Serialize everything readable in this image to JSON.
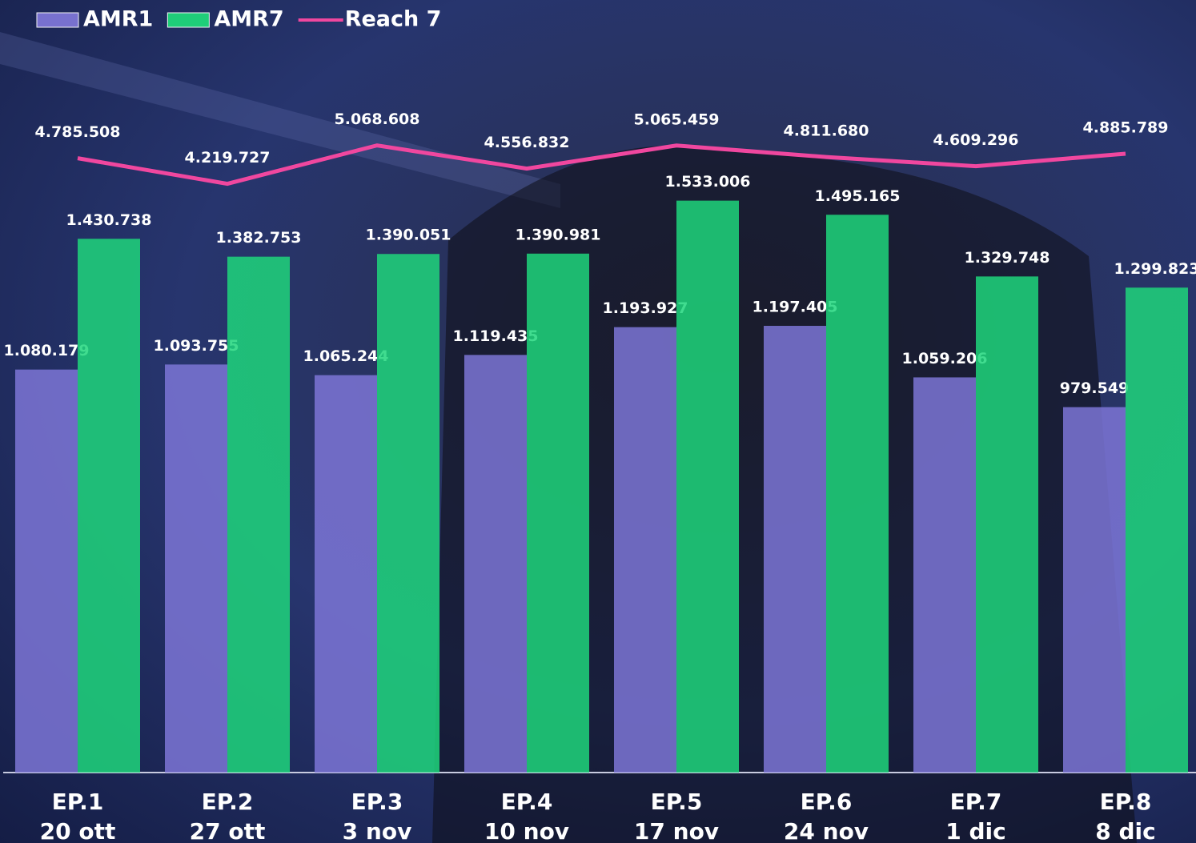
{
  "chart_data": {
    "type": "bar",
    "categories": [
      [
        "EP.1",
        "20 ott"
      ],
      [
        "EP.2",
        "27 ott"
      ],
      [
        "EP.3",
        "3 nov"
      ],
      [
        "EP.4",
        "10 nov"
      ],
      [
        "EP.5",
        "17 nov"
      ],
      [
        "EP.6",
        "24 nov"
      ],
      [
        "EP.7",
        "1 dic"
      ],
      [
        "EP.8",
        "8 dic"
      ]
    ],
    "series": [
      {
        "name": "AMR1",
        "type": "bar",
        "color": "#7d75d6",
        "values": [
          1080179,
          1093755,
          1065244,
          1119435,
          1193927,
          1197405,
          1059206,
          979549
        ],
        "value_labels": [
          "1.080.179",
          "1.093.755",
          "1.065.244",
          "1.119.435",
          "1.193.927",
          "1.197.405",
          "1.059.206",
          "979.549"
        ]
      },
      {
        "name": "AMR7",
        "type": "bar",
        "color": "#1fd67b",
        "values": [
          1430738,
          1382753,
          1390051,
          1390981,
          1533006,
          1495165,
          1329748,
          1299823
        ],
        "value_labels": [
          "1.430.738",
          "1.382.753",
          "1.390.051",
          "1.390.981",
          "1.533.006",
          "1.495.165",
          "1.329.748",
          "1.299.823"
        ]
      },
      {
        "name": "Reach 7",
        "type": "line",
        "axis": "y2",
        "color": "#f0479f",
        "values": [
          4785508,
          4219727,
          5068608,
          4556832,
          5065459,
          4811680,
          4609296,
          4885789
        ],
        "value_labels": [
          "4.785.508",
          "4.219.727",
          "5.068.608",
          "4.556.832",
          "5.065.459",
          "4.811.680",
          "4.609.296",
          "4.885.789"
        ]
      }
    ],
    "ylim": [
      0,
      2000000
    ],
    "y2lim": [
      -8800000,
      7700000
    ],
    "legend": "top-left"
  }
}
